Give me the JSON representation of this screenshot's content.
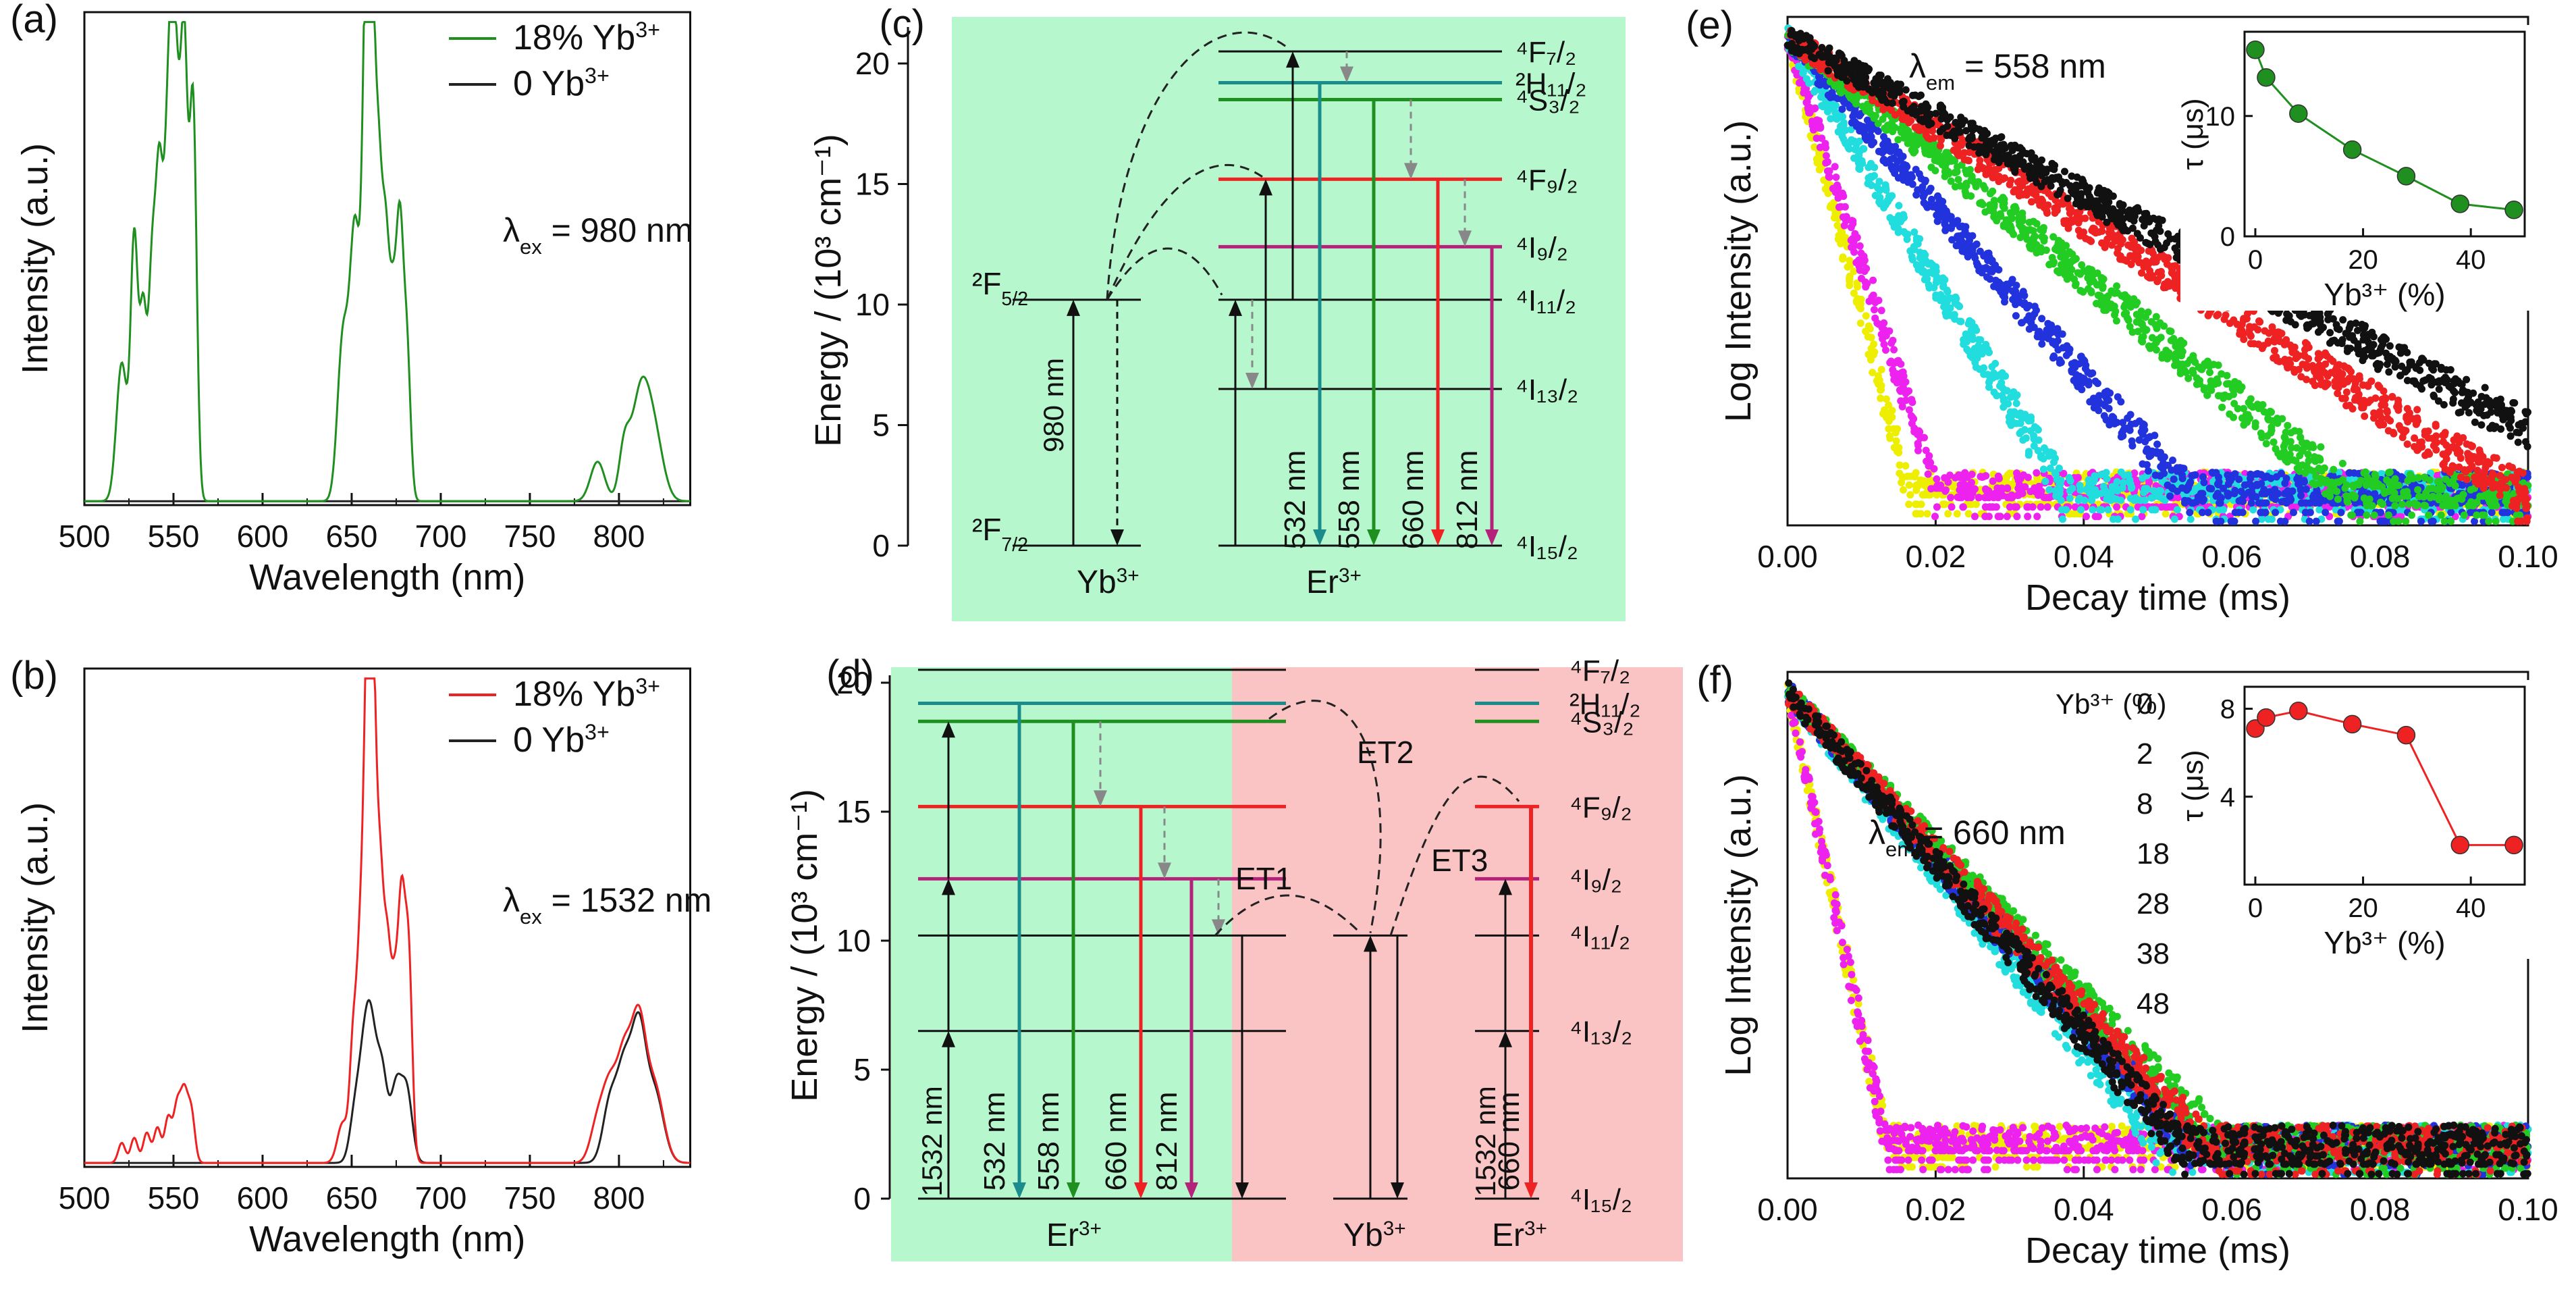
{
  "colors": {
    "green": "#1f8f1f",
    "red": "#ee2222",
    "black": "#222222",
    "teal": "#1a8c8c",
    "purple": "#b5227a",
    "blue": "#2233dd",
    "cyan": "#22dddd",
    "magenta": "#ee22ee",
    "yellow": "#eeee00",
    "green_bg": "#b6f7cd",
    "red_bg": "#fbc4c4"
  },
  "chart_data": [
    {
      "id": "a",
      "panel_label": "(a)",
      "type": "line",
      "xlabel": "Wavelength (nm)",
      "ylabel": "Intensity (a.u.)",
      "xlim": [
        500,
        840
      ],
      "ylim": [
        0,
        100
      ],
      "xticks": [
        500,
        550,
        600,
        650,
        700,
        750,
        800
      ],
      "annotation": {
        "symbol": "λ",
        "sub": "ex",
        "text": " = 980 nm"
      },
      "series": [
        {
          "name": "18% Yb",
          "sup": "3+",
          "color": "#1f8f1f",
          "peaks": [
            [
              521,
              28,
              3
            ],
            [
              528,
              52,
              2
            ],
            [
              533,
              38,
              2
            ],
            [
              538,
              45,
              2
            ],
            [
              542,
              60,
              2
            ],
            [
              546,
              48,
              2
            ],
            [
              549,
              72,
              2
            ],
            [
              552,
              58,
              2
            ],
            [
              556,
              88,
              2
            ],
            [
              561,
              80,
              2
            ],
            [
              645,
              32,
              3
            ],
            [
              652,
              55,
              3
            ],
            [
              658,
              85,
              2
            ],
            [
              661,
              92,
              2
            ],
            [
              665,
              60,
              2
            ],
            [
              669,
              48,
              2
            ],
            [
              673,
              35,
              2
            ],
            [
              677,
              52,
              2
            ],
            [
              681,
              30,
              2
            ],
            [
              788,
              8,
              4
            ],
            [
              803,
              10,
              3
            ],
            [
              812,
              21,
              5
            ],
            [
              820,
              12,
              5
            ]
          ]
        },
        {
          "name": "0 Yb",
          "sup": "3+",
          "color": "#222222",
          "peaks": []
        }
      ]
    },
    {
      "id": "b",
      "panel_label": "(b)",
      "type": "line",
      "xlabel": "Wavelength (nm)",
      "ylabel": "Intensity (a.u.)",
      "xlim": [
        500,
        840
      ],
      "ylim": [
        0,
        100
      ],
      "xticks": [
        500,
        550,
        600,
        650,
        700,
        750,
        800
      ],
      "annotation": {
        "symbol": "λ",
        "sub": "ex",
        "text": " = 1532 nm"
      },
      "series": [
        {
          "name": "18% Yb",
          "sup": "3+",
          "color": "#ee2222",
          "peaks": [
            [
              521,
              4,
              2
            ],
            [
              528,
              5,
              2
            ],
            [
              535,
              6,
              2
            ],
            [
              541,
              7,
              2
            ],
            [
              547,
              9,
              2
            ],
            [
              552,
              11,
              2
            ],
            [
              556,
              13,
              2
            ],
            [
              560,
              10,
              2
            ],
            [
              645,
              8,
              3
            ],
            [
              651,
              24,
              2
            ],
            [
              655,
              40,
              2
            ],
            [
              659,
              95,
              2
            ],
            [
              662,
              78,
              2
            ],
            [
              666,
              50,
              2
            ],
            [
              670,
              38,
              2
            ],
            [
              674,
              30,
              2
            ],
            [
              678,
              48,
              2
            ],
            [
              682,
              40,
              2
            ],
            [
              788,
              8,
              4
            ],
            [
              795,
              14,
              4
            ],
            [
              803,
              20,
              4
            ],
            [
              811,
              26,
              4
            ],
            [
              820,
              15,
              5
            ]
          ]
        },
        {
          "name": "0 Yb",
          "sup": "3+",
          "color": "#222222",
          "peaks": [
            [
              652,
              10,
              3
            ],
            [
              657,
              17,
              3
            ],
            [
              661,
              22,
              3
            ],
            [
              667,
              18,
              3
            ],
            [
              675,
              15,
              3
            ],
            [
              681,
              14,
              3
            ],
            [
              795,
              12,
              4
            ],
            [
              803,
              18,
              4
            ],
            [
              811,
              25,
              4
            ],
            [
              820,
              14,
              5
            ]
          ]
        }
      ]
    },
    {
      "id": "c",
      "panel_label": "(c)",
      "type": "energy-level-diagram",
      "ylabel": "Energy / (10³ cm⁻¹)",
      "ylim": [
        0,
        21
      ],
      "yticks": [
        0,
        5,
        10,
        15,
        20
      ],
      "ions": [
        "Yb³⁺",
        "Er³⁺"
      ],
      "excitation": "980 nm",
      "levels": [
        {
          "name": "⁴F₇/₂",
          "energy": 20.5
        },
        {
          "name": "²H₁₁/₂",
          "energy": 19.2
        },
        {
          "name": "⁴S₃/₂",
          "energy": 18.5
        },
        {
          "name": "⁴F₉/₂",
          "energy": 15.2
        },
        {
          "name": "⁴I₉/₂",
          "energy": 12.4
        },
        {
          "name": "⁴I₁₁/₂",
          "energy": 10.2
        },
        {
          "name": "⁴I₁₃/₂",
          "energy": 6.5
        },
        {
          "name": "⁴I₁₅/₂",
          "energy": 0
        }
      ],
      "yb_levels": [
        {
          "name": "²F₅/₂",
          "energy": 10.2
        },
        {
          "name": "²F₇/₂",
          "energy": 0
        }
      ],
      "emissions": [
        "532 nm",
        "558 nm",
        "660 nm",
        "812 nm"
      ]
    },
    {
      "id": "d",
      "panel_label": "(d)",
      "type": "energy-level-diagram",
      "ylabel": "Energy / (10³ cm⁻¹)",
      "ylim": [
        0,
        21
      ],
      "yticks": [
        0,
        5,
        10,
        15,
        20
      ],
      "ions": [
        "Er³⁺",
        "Yb³⁺",
        "Er³⁺"
      ],
      "excitation": "1532 nm",
      "transfers": [
        "ET1",
        "ET2",
        "ET3"
      ],
      "levels": [
        {
          "name": "⁴F₇/₂",
          "energy": 20.5
        },
        {
          "name": "²H₁₁/₂",
          "energy": 19.2
        },
        {
          "name": "⁴S₃/₂",
          "energy": 18.5
        },
        {
          "name": "⁴F₉/₂",
          "energy": 15.2
        },
        {
          "name": "⁴I₉/₂",
          "energy": 12.4
        },
        {
          "name": "⁴I₁₁/₂",
          "energy": 10.2
        },
        {
          "name": "⁴I₁₃/₂",
          "energy": 6.5
        },
        {
          "name": "⁴I₁₅/₂",
          "energy": 0
        }
      ],
      "emissions": [
        "532 nm",
        "558 nm",
        "660 nm",
        "812 nm",
        "660 nm"
      ]
    },
    {
      "id": "e",
      "panel_label": "(e)",
      "type": "scatter",
      "xlabel": "Decay time (ms)",
      "ylabel": "Log Intensity (a.u.)",
      "xlim": [
        0,
        0.1
      ],
      "xticks": [
        0.0,
        0.02,
        0.04,
        0.06,
        0.08,
        0.1
      ],
      "annotation": {
        "symbol": "λ",
        "sub": "em",
        "text": " = 558 nm",
        "color": "#1f8f1f"
      },
      "series": [
        {
          "name": "0",
          "color": "#111111",
          "tau_us": 15.5
        },
        {
          "name": "2",
          "color": "#ee2222",
          "tau_us": 13.2
        },
        {
          "name": "8",
          "color": "#22cc22",
          "tau_us": 10.2
        },
        {
          "name": "18",
          "color": "#2233dd",
          "tau_us": 7.2
        },
        {
          "name": "28",
          "color": "#22dddd",
          "tau_us": 5.0
        },
        {
          "name": "38",
          "color": "#ee22ee",
          "tau_us": 2.7
        },
        {
          "name": "48",
          "color": "#eeee00",
          "tau_us": 2.2
        }
      ],
      "inset": {
        "xlabel": "Yb³⁺ (%)",
        "ylabel": "τ (μs)",
        "x": [
          0,
          2,
          8,
          18,
          28,
          38,
          48
        ],
        "y": [
          15.5,
          13.2,
          10.2,
          7.2,
          5.0,
          2.7,
          2.2
        ],
        "xlim": [
          -2,
          50
        ],
        "ylim": [
          0,
          17
        ],
        "xticks": [
          0,
          20,
          40
        ],
        "yticks": [
          0,
          10
        ],
        "color": "#1f8f1f"
      }
    },
    {
      "id": "f",
      "panel_label": "(f)",
      "type": "scatter",
      "xlabel": "Decay time (ms)",
      "ylabel": "Log Intensity (a.u.)",
      "xlim": [
        0,
        0.1
      ],
      "xticks": [
        0.0,
        0.02,
        0.04,
        0.06,
        0.08,
        0.1
      ],
      "annotation": {
        "symbol": "λ",
        "sub": "em",
        "text": " = 660 nm",
        "color": "#ee2222"
      },
      "legend_title": "Yb³⁺ (%)",
      "series": [
        {
          "name": "0",
          "color": "#111111",
          "tau_us": 7.1
        },
        {
          "name": "2",
          "color": "#ee2222",
          "tau_us": 7.6
        },
        {
          "name": "8",
          "color": "#22cc22",
          "tau_us": 7.9
        },
        {
          "name": "18",
          "color": "#2233dd",
          "tau_us": 7.3
        },
        {
          "name": "28",
          "color": "#22dddd",
          "tau_us": 6.8
        },
        {
          "name": "38",
          "color": "#ee22ee",
          "tau_us": 1.8
        },
        {
          "name": "48",
          "color": "#eeee00",
          "tau_us": 1.8
        }
      ],
      "inset": {
        "xlabel": "Yb³⁺ (%)",
        "ylabel": "τ (μs)",
        "x": [
          0,
          2,
          8,
          18,
          28,
          38,
          48
        ],
        "y": [
          7.1,
          7.6,
          7.9,
          7.3,
          6.8,
          1.8,
          1.8
        ],
        "xlim": [
          -2,
          50
        ],
        "ylim": [
          0,
          9
        ],
        "xticks": [
          0,
          20,
          40
        ],
        "yticks": [
          4,
          8
        ],
        "color": "#ee2222"
      }
    }
  ]
}
